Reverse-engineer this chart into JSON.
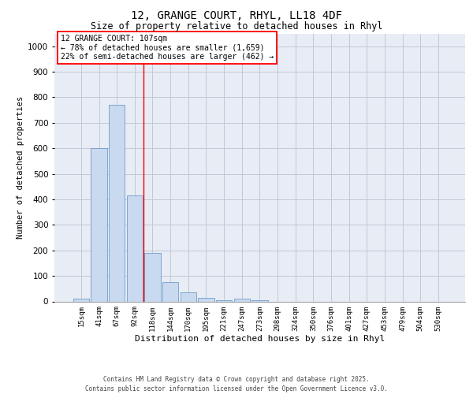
{
  "title_line1": "12, GRANGE COURT, RHYL, LL18 4DF",
  "title_line2": "Size of property relative to detached houses in Rhyl",
  "xlabel": "Distribution of detached houses by size in Rhyl",
  "ylabel": "Number of detached properties",
  "categories": [
    "15sqm",
    "41sqm",
    "67sqm",
    "92sqm",
    "118sqm",
    "144sqm",
    "170sqm",
    "195sqm",
    "221sqm",
    "247sqm",
    "273sqm",
    "298sqm",
    "324sqm",
    "350sqm",
    "376sqm",
    "401sqm",
    "427sqm",
    "453sqm",
    "479sqm",
    "504sqm",
    "530sqm"
  ],
  "values": [
    10,
    600,
    770,
    415,
    190,
    75,
    35,
    15,
    5,
    10,
    5,
    0,
    0,
    0,
    0,
    0,
    0,
    0,
    0,
    0,
    0
  ],
  "bar_color": "#c9d9f0",
  "bar_edge_color": "#5a8fc3",
  "grid_color": "#c0c8d8",
  "background_color": "#e8ecf5",
  "annotation_text": "12 GRANGE COURT: 107sqm\n← 78% of detached houses are smaller (1,659)\n22% of semi-detached houses are larger (462) →",
  "vline_x": 3.5,
  "ylim": [
    0,
    1050
  ],
  "yticks": [
    0,
    100,
    200,
    300,
    400,
    500,
    600,
    700,
    800,
    900,
    1000
  ],
  "title_fontsize": 10,
  "subtitle_fontsize": 8.5,
  "footer_text": "Contains HM Land Registry data © Crown copyright and database right 2025.\nContains public sector information licensed under the Open Government Licence v3.0."
}
